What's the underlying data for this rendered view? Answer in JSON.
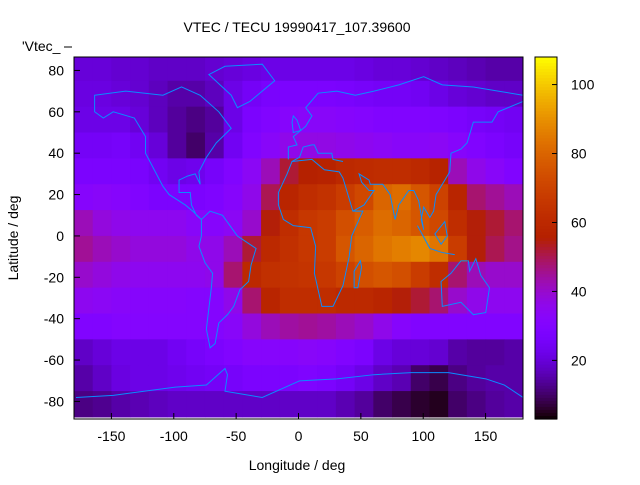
{
  "chart_data": {
    "type": "heatmap",
    "title": "VTEC / TECU 19990417_107.39600",
    "xlabel": "Longitude / deg",
    "ylabel": "Latitude / deg",
    "legend_label": "'Vtec_",
    "legend_placement": "top-left",
    "xlim": [
      -180,
      180
    ],
    "ylim": [
      -88.5,
      86.5
    ],
    "xticks": [
      -150,
      -100,
      -50,
      0,
      50,
      100,
      150
    ],
    "yticks": [
      -80,
      -60,
      -40,
      -20,
      0,
      20,
      40,
      60,
      80
    ],
    "cbrange": [
      3,
      108
    ],
    "cbticks": [
      20,
      40,
      60,
      80,
      100
    ],
    "lon_centers": [
      -172.5,
      -157.5,
      -142.5,
      -127.5,
      -112.5,
      -97.5,
      -82.5,
      -67.5,
      -52.5,
      -37.5,
      -22.5,
      -7.5,
      7.5,
      22.5,
      37.5,
      52.5,
      67.5,
      82.5,
      97.5,
      112.5,
      127.5,
      142.5,
      157.5,
      172.5
    ],
    "lat_centers": [
      81.25,
      68.75,
      56.25,
      43.75,
      31.25,
      18.75,
      6.25,
      -6.25,
      -18.75,
      -31.25,
      -43.75,
      -56.25,
      -68.75,
      -81.25
    ],
    "values": [
      [
        20,
        20,
        19,
        19,
        18,
        18,
        18,
        19,
        20,
        21,
        22,
        22,
        22,
        22,
        22,
        21,
        20,
        20,
        19,
        18,
        17,
        16,
        15,
        15
      ],
      [
        21,
        21,
        20,
        19,
        17,
        15,
        15,
        17,
        22,
        25,
        27,
        28,
        28,
        28,
        27,
        26,
        25,
        25,
        24,
        22,
        20,
        19,
        18,
        18
      ],
      [
        22,
        22,
        22,
        20,
        17,
        14,
        12,
        14,
        22,
        28,
        30,
        32,
        33,
        33,
        32,
        31,
        30,
        30,
        30,
        29,
        28,
        26,
        25,
        24
      ],
      [
        25,
        25,
        26,
        24,
        20,
        14,
        10,
        15,
        24,
        30,
        33,
        36,
        37,
        37,
        36,
        35,
        34,
        33,
        33,
        34,
        32,
        30,
        28,
        26
      ],
      [
        28,
        28,
        28,
        27,
        24,
        22,
        23,
        26,
        30,
        34,
        42,
        52,
        56,
        57,
        60,
        61,
        62,
        62,
        60,
        57,
        42,
        36,
        33,
        30
      ],
      [
        32,
        33,
        32,
        30,
        28,
        28,
        28,
        29,
        32,
        36,
        50,
        58,
        62,
        64,
        68,
        72,
        80,
        82,
        76,
        70,
        58,
        48,
        45,
        42
      ],
      [
        42,
        38,
        36,
        35,
        35,
        35,
        33,
        32,
        34,
        40,
        55,
        62,
        66,
        68,
        74,
        78,
        82,
        80,
        76,
        72,
        62,
        55,
        52,
        48
      ],
      [
        45,
        42,
        40,
        38,
        38,
        38,
        36,
        36,
        42,
        52,
        60,
        63,
        66,
        68,
        76,
        80,
        84,
        86,
        88,
        84,
        68,
        55,
        50,
        46
      ],
      [
        40,
        38,
        36,
        35,
        35,
        35,
        35,
        36,
        48,
        60,
        63,
        64,
        65,
        66,
        70,
        74,
        76,
        74,
        68,
        62,
        48,
        42,
        40,
        40
      ],
      [
        35,
        34,
        33,
        32,
        32,
        32,
        31,
        31,
        36,
        48,
        58,
        62,
        62,
        62,
        60,
        60,
        58,
        55,
        52,
        48,
        40,
        36,
        35,
        35
      ],
      [
        30,
        30,
        31,
        31,
        31,
        31,
        31,
        31,
        33,
        38,
        42,
        44,
        45,
        44,
        42,
        40,
        36,
        32,
        30,
        30,
        30,
        30,
        30,
        30
      ],
      [
        18,
        20,
        22,
        22,
        22,
        24,
        26,
        28,
        30,
        32,
        32,
        32,
        33,
        32,
        30,
        28,
        22,
        20,
        20,
        19,
        15,
        14,
        14,
        15
      ],
      [
        15,
        18,
        21,
        22,
        22,
        23,
        24,
        25,
        26,
        28,
        28,
        28,
        29,
        28,
        25,
        22,
        18,
        16,
        10,
        8,
        12,
        14,
        15,
        15
      ],
      [
        12,
        13,
        15,
        16,
        17,
        18,
        18,
        18,
        18,
        18,
        18,
        18,
        18,
        18,
        16,
        14,
        10,
        8,
        6,
        5,
        10,
        12,
        14,
        15
      ]
    ]
  }
}
